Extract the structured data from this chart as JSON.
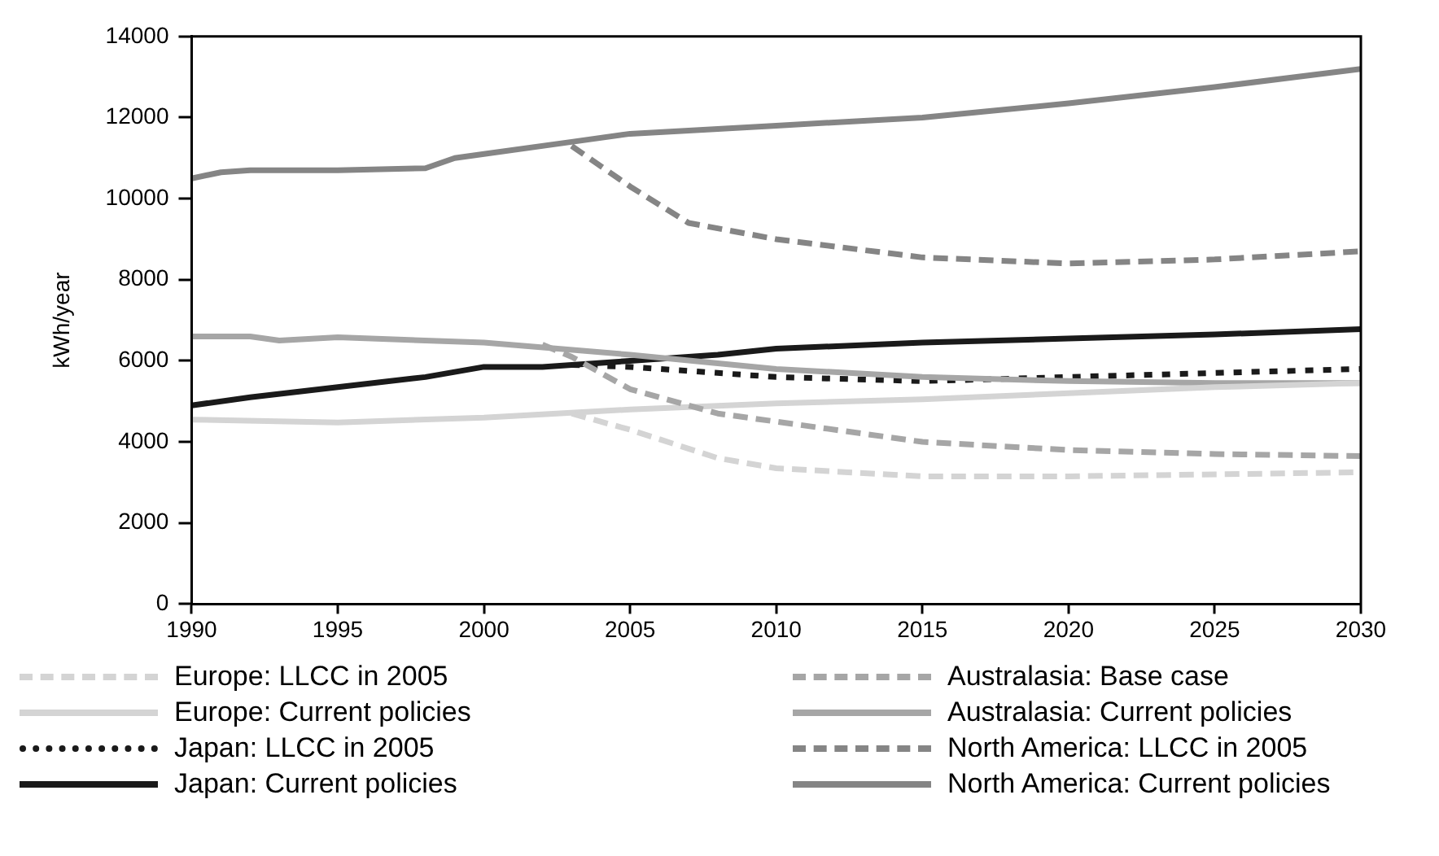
{
  "chart_data": {
    "type": "line",
    "ylabel": "kWh/year",
    "xlim": [
      1990,
      2030
    ],
    "xticks": [
      1990,
      1995,
      2000,
      2005,
      2010,
      2015,
      2020,
      2025,
      2030
    ],
    "ylim": [
      0,
      14000
    ],
    "yticks": [
      0,
      2000,
      4000,
      6000,
      8000,
      10000,
      12000,
      14000
    ],
    "grid": false,
    "legend": "bottom",
    "marker": "none",
    "series": [
      {
        "name": "Europe: LLCC in 2005",
        "color": "#d4d4d4",
        "line_style": "dashed",
        "x": [
          2003,
          2005,
          2008,
          2010,
          2015,
          2020,
          2025,
          2030
        ],
        "values": [
          4700,
          4300,
          3600,
          3350,
          3150,
          3150,
          3200,
          3250
        ]
      },
      {
        "name": "Australasia: Base case",
        "color": "#a6a6a6",
        "line_style": "dashed",
        "x": [
          2002,
          2003,
          2005,
          2008,
          2010,
          2015,
          2020,
          2025,
          2030
        ],
        "values": [
          6400,
          6100,
          5300,
          4700,
          4500,
          4000,
          3800,
          3700,
          3650
        ]
      },
      {
        "name": "Europe: Current policies",
        "color": "#d4d4d4",
        "line_style": "solid",
        "x": [
          1990,
          1995,
          2000,
          2005,
          2010,
          2015,
          2020,
          2025,
          2030
        ],
        "values": [
          4550,
          4480,
          4600,
          4800,
          4950,
          5050,
          5200,
          5350,
          5450
        ]
      },
      {
        "name": "Australasia: Current policies",
        "color": "#a6a6a6",
        "line_style": "solid",
        "x": [
          1990,
          1992,
          1993,
          1995,
          2000,
          2005,
          2010,
          2015,
          2020,
          2025,
          2030
        ],
        "values": [
          6600,
          6600,
          6500,
          6580,
          6450,
          6150,
          5800,
          5600,
          5500,
          5450,
          5450
        ]
      },
      {
        "name": "Japan: LLCC in 2005",
        "color": "#1a1a1a",
        "line_style": "dotted",
        "x": [
          2003,
          2005,
          2010,
          2015,
          2020,
          2025,
          2030
        ],
        "values": [
          5900,
          5850,
          5600,
          5500,
          5600,
          5700,
          5800
        ]
      },
      {
        "name": "North America: LLCC in 2005",
        "color": "#858585",
        "line_style": "dashed",
        "x": [
          2003,
          2005,
          2007,
          2010,
          2015,
          2020,
          2025,
          2030
        ],
        "values": [
          11300,
          10300,
          9400,
          9000,
          8550,
          8400,
          8500,
          8700
        ]
      },
      {
        "name": "Japan: Current policies",
        "color": "#1a1a1a",
        "line_style": "solid",
        "x": [
          1990,
          1992,
          1995,
          1998,
          2000,
          2002,
          2003,
          2005,
          2008,
          2010,
          2015,
          2020,
          2025,
          2030
        ],
        "values": [
          4900,
          5100,
          5350,
          5600,
          5850,
          5850,
          5900,
          6000,
          6150,
          6300,
          6450,
          6550,
          6650,
          6780
        ]
      },
      {
        "name": "North America: Current policies",
        "color": "#858585",
        "line_style": "solid",
        "x": [
          1990,
          1991,
          1992,
          1995,
          1998,
          1999,
          2000,
          2003,
          2005,
          2010,
          2015,
          2020,
          2025,
          2030
        ],
        "values": [
          10500,
          10650,
          10700,
          10700,
          10750,
          11000,
          11100,
          11400,
          11600,
          11800,
          12000,
          12350,
          12750,
          13200
        ]
      }
    ]
  }
}
